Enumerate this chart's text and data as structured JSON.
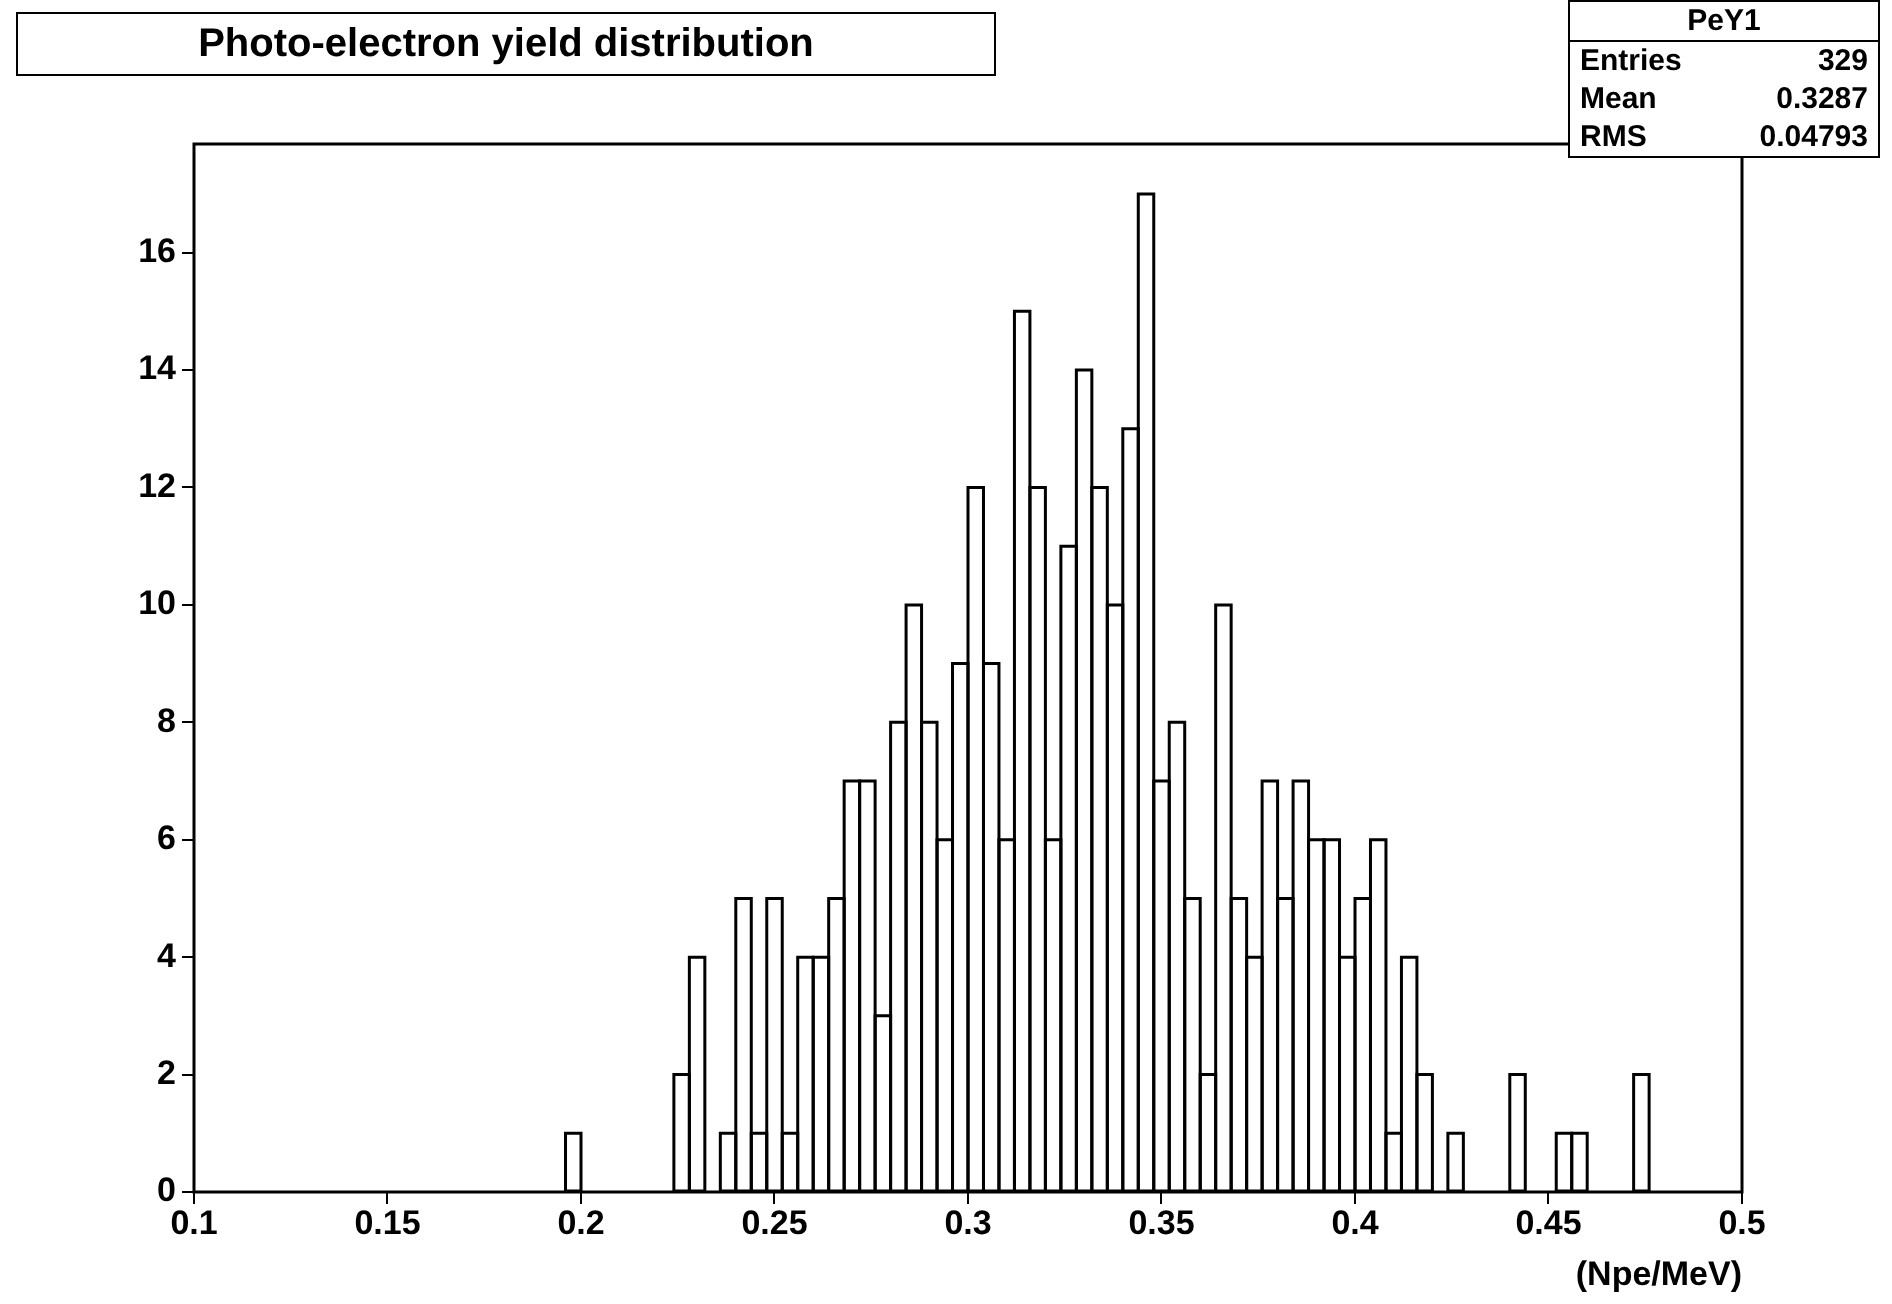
{
  "chart_data": {
    "type": "histogram",
    "title": "Photo-electron yield distribution",
    "xlabel": "(Npe/MeV)",
    "annotations": [
      "PeY1",
      "Entries",
      "329",
      "Mean",
      "0.3287",
      "RMS",
      "0.04793"
    ],
    "bins": [
      0.1,
      0.104,
      0.108,
      0.112,
      0.116,
      0.12,
      0.124,
      0.128,
      0.132,
      0.136,
      0.14,
      0.144,
      0.148,
      0.152,
      0.156,
      0.16,
      0.164,
      0.168,
      0.172,
      0.176,
      0.18,
      0.184,
      0.188,
      0.192,
      0.196,
      0.2,
      0.204,
      0.208,
      0.212,
      0.216,
      0.22,
      0.224,
      0.228,
      0.232,
      0.236,
      0.24,
      0.244,
      0.248,
      0.252,
      0.256,
      0.26,
      0.264,
      0.268,
      0.272,
      0.276,
      0.28,
      0.284,
      0.288,
      0.292,
      0.296,
      0.3,
      0.304,
      0.308,
      0.312,
      0.316,
      0.32,
      0.324,
      0.328,
      0.332,
      0.336,
      0.34,
      0.344,
      0.348,
      0.352,
      0.356,
      0.36,
      0.364,
      0.368,
      0.372,
      0.376,
      0.38,
      0.384,
      0.388,
      0.392,
      0.396,
      0.4,
      0.404,
      0.408,
      0.412,
      0.416,
      0.42,
      0.424,
      0.428,
      0.432,
      0.436,
      0.44,
      0.444,
      0.448,
      0.452,
      0.456,
      0.46,
      0.464,
      0.468,
      0.472,
      0.476,
      0.48,
      0.484,
      0.488,
      0.492,
      0.496,
      0.5
    ],
    "values": [
      0,
      0,
      0,
      0,
      0,
      0,
      0,
      0,
      0,
      0,
      0,
      0,
      0,
      0,
      0,
      0,
      0,
      0,
      0,
      0,
      0,
      0,
      0,
      0,
      1,
      0,
      0,
      0,
      0,
      0,
      0,
      2,
      4,
      0,
      1,
      5,
      1,
      5,
      1,
      4,
      4,
      5,
      7,
      7,
      3,
      8,
      10,
      8,
      6,
      9,
      12,
      9,
      6,
      15,
      12,
      6,
      11,
      14,
      12,
      10,
      13,
      17,
      7,
      8,
      5,
      2,
      10,
      5,
      4,
      7,
      5,
      7,
      6,
      6,
      4,
      5,
      6,
      1,
      4,
      2,
      0,
      1,
      0,
      0,
      0,
      2,
      0,
      0,
      1,
      1,
      0,
      0,
      0,
      2,
      0,
      0,
      0,
      0,
      0,
      0
    ],
    "color": "#000000",
    "xlim": [
      0.1,
      0.5
    ],
    "xticks": [
      0.1,
      0.15,
      0.2,
      0.25,
      0.3,
      0.35,
      0.4,
      0.45,
      0.5
    ],
    "ylim": [
      0,
      17.85
    ],
    "yticks": [
      0,
      2,
      4,
      6,
      8,
      10,
      12,
      14,
      16
    ],
    "grid": false,
    "legend": false
  }
}
